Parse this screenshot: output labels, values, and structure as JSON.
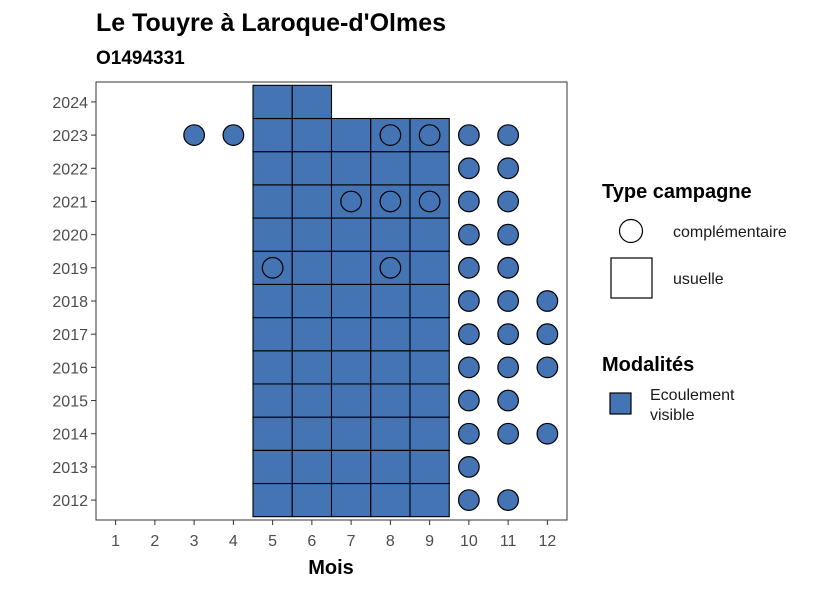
{
  "title": "Le Touyre à Laroque-d'Olmes",
  "subtitle": "O1494331",
  "chart_data": {
    "type": "heatmap",
    "xlabel": "Mois",
    "ylabel": "",
    "x_ticks": [
      1,
      2,
      3,
      4,
      5,
      6,
      7,
      8,
      9,
      10,
      11,
      12
    ],
    "y_ticks": [
      2012,
      2013,
      2014,
      2015,
      2016,
      2017,
      2018,
      2019,
      2020,
      2021,
      2022,
      2023,
      2024
    ],
    "xlim": [
      0.5,
      12.5
    ],
    "ylim": [
      2011.4,
      2024.6
    ],
    "grid": false,
    "fill_color": "#4574b4",
    "legend_placement": "right",
    "legend": {
      "campaign_type": {
        "title": "Type campagne",
        "items": [
          {
            "shape": "circle",
            "label": "complémentaire"
          },
          {
            "shape": "square",
            "label": "usuelle"
          }
        ]
      },
      "modality": {
        "title": "Modalités",
        "items": [
          {
            "label_lines": [
              "Ecoulement",
              "visible"
            ],
            "color": "#4574b4"
          }
        ]
      }
    },
    "usual_squares": [
      [
        5,
        2012
      ],
      [
        6,
        2012
      ],
      [
        7,
        2012
      ],
      [
        8,
        2012
      ],
      [
        9,
        2012
      ],
      [
        5,
        2013
      ],
      [
        6,
        2013
      ],
      [
        7,
        2013
      ],
      [
        8,
        2013
      ],
      [
        9,
        2013
      ],
      [
        5,
        2014
      ],
      [
        6,
        2014
      ],
      [
        7,
        2014
      ],
      [
        8,
        2014
      ],
      [
        9,
        2014
      ],
      [
        5,
        2015
      ],
      [
        6,
        2015
      ],
      [
        7,
        2015
      ],
      [
        8,
        2015
      ],
      [
        9,
        2015
      ],
      [
        5,
        2016
      ],
      [
        6,
        2016
      ],
      [
        7,
        2016
      ],
      [
        8,
        2016
      ],
      [
        9,
        2016
      ],
      [
        5,
        2017
      ],
      [
        6,
        2017
      ],
      [
        7,
        2017
      ],
      [
        8,
        2017
      ],
      [
        9,
        2017
      ],
      [
        5,
        2018
      ],
      [
        6,
        2018
      ],
      [
        7,
        2018
      ],
      [
        8,
        2018
      ],
      [
        9,
        2018
      ],
      [
        5,
        2019
      ],
      [
        6,
        2019
      ],
      [
        7,
        2019
      ],
      [
        8,
        2019
      ],
      [
        9,
        2019
      ],
      [
        5,
        2020
      ],
      [
        6,
        2020
      ],
      [
        7,
        2020
      ],
      [
        8,
        2020
      ],
      [
        9,
        2020
      ],
      [
        5,
        2021
      ],
      [
        6,
        2021
      ],
      [
        7,
        2021
      ],
      [
        8,
        2021
      ],
      [
        9,
        2021
      ],
      [
        5,
        2022
      ],
      [
        6,
        2022
      ],
      [
        7,
        2022
      ],
      [
        8,
        2022
      ],
      [
        9,
        2022
      ],
      [
        5,
        2023
      ],
      [
        6,
        2023
      ],
      [
        7,
        2023
      ],
      [
        8,
        2023
      ],
      [
        9,
        2023
      ],
      [
        5,
        2024
      ],
      [
        6,
        2024
      ]
    ],
    "complementary_filled": [
      [
        3,
        2023
      ],
      [
        4,
        2023
      ],
      [
        10,
        2012
      ],
      [
        11,
        2012
      ],
      [
        10,
        2013
      ],
      [
        10,
        2014
      ],
      [
        11,
        2014
      ],
      [
        12,
        2014
      ],
      [
        10,
        2015
      ],
      [
        11,
        2015
      ],
      [
        10,
        2016
      ],
      [
        11,
        2016
      ],
      [
        12,
        2016
      ],
      [
        10,
        2017
      ],
      [
        11,
        2017
      ],
      [
        12,
        2017
      ],
      [
        10,
        2018
      ],
      [
        11,
        2018
      ],
      [
        12,
        2018
      ],
      [
        10,
        2019
      ],
      [
        11,
        2019
      ],
      [
        10,
        2020
      ],
      [
        11,
        2020
      ],
      [
        10,
        2021
      ],
      [
        11,
        2021
      ],
      [
        10,
        2022
      ],
      [
        11,
        2022
      ],
      [
        10,
        2023
      ],
      [
        11,
        2023
      ]
    ],
    "complementary_open": [
      [
        5,
        2019
      ],
      [
        8,
        2019
      ],
      [
        7,
        2021
      ],
      [
        8,
        2021
      ],
      [
        9,
        2021
      ],
      [
        8,
        2023
      ],
      [
        9,
        2023
      ]
    ]
  }
}
